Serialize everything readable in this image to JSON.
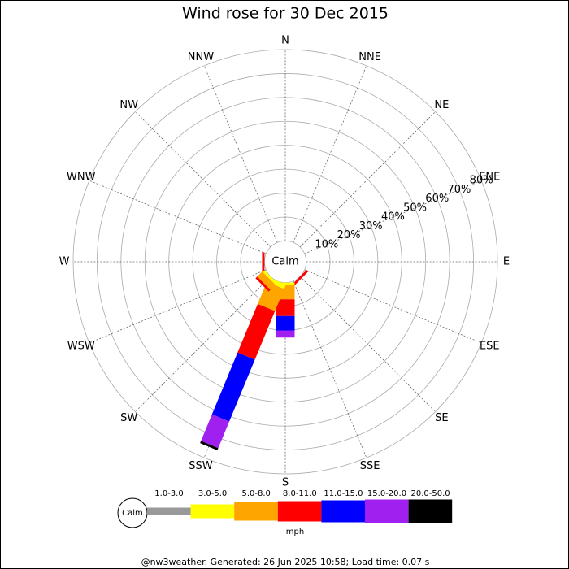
{
  "chart_data": {
    "type": "windrose",
    "title": "Wind rose for 30 Dec 2015",
    "categories": [
      "N",
      "NNE",
      "NE",
      "ENE",
      "E",
      "ESE",
      "SE",
      "SSE",
      "S",
      "SSW",
      "SW",
      "WSW",
      "W",
      "WNW",
      "NW",
      "NNW"
    ],
    "center_label": "Calm",
    "ylim": [
      0,
      80
    ],
    "yticks": [
      {
        "value": 10,
        "label": "10%"
      },
      {
        "value": 20,
        "label": "20%"
      },
      {
        "value": 30,
        "label": "30%"
      },
      {
        "value": 40,
        "label": "40%"
      },
      {
        "value": 50,
        "label": "50%"
      },
      {
        "value": 60,
        "label": "60%"
      },
      {
        "value": 70,
        "label": "70%"
      },
      {
        "value": 80,
        "label": "80%"
      }
    ],
    "series": [
      {
        "name": "1.0-3.0",
        "color": "#999999",
        "values": [
          0,
          0,
          0,
          0,
          0,
          0,
          0,
          0,
          0,
          0,
          0,
          0,
          0,
          0,
          0,
          0
        ]
      },
      {
        "name": "3.0-5.0",
        "color": "#ffff00",
        "values": [
          0,
          0,
          0,
          0,
          0,
          0,
          0,
          0,
          1,
          2,
          1,
          0,
          0,
          0,
          0,
          0
        ]
      },
      {
        "name": "5.0-8.0",
        "color": "#ffa500",
        "values": [
          0,
          0,
          0,
          0,
          0,
          0,
          0,
          0,
          6,
          10,
          3,
          0,
          0,
          0,
          0,
          0
        ]
      },
      {
        "name": "8.0-11.0",
        "color": "#ff0000",
        "values": [
          0,
          0,
          0,
          0,
          0,
          0,
          1,
          0,
          7,
          22,
          1,
          0,
          1,
          0,
          0,
          0
        ]
      },
      {
        "name": "11.0-15.0",
        "color": "#0000ff",
        "values": [
          0,
          0,
          0,
          0,
          0,
          0,
          0,
          0,
          6,
          28,
          0,
          0,
          0,
          0,
          0,
          0
        ]
      },
      {
        "name": "15.0-20.0",
        "color": "#a020f0",
        "values": [
          0,
          0,
          0,
          0,
          0,
          0,
          0,
          0,
          3,
          12,
          0,
          0,
          0,
          0,
          0,
          0
        ]
      },
      {
        "name": "20.0-50.0",
        "color": "#000000",
        "values": [
          0,
          0,
          0,
          0,
          0,
          0,
          0,
          0,
          0,
          1,
          0,
          0,
          0,
          0,
          0,
          0
        ]
      }
    ],
    "legend_calm": "Calm",
    "legend_unit": "mph",
    "footer": "@nw3weather. Generated: 26 Jun 2025 10:58; Load time: 0.07 s"
  }
}
